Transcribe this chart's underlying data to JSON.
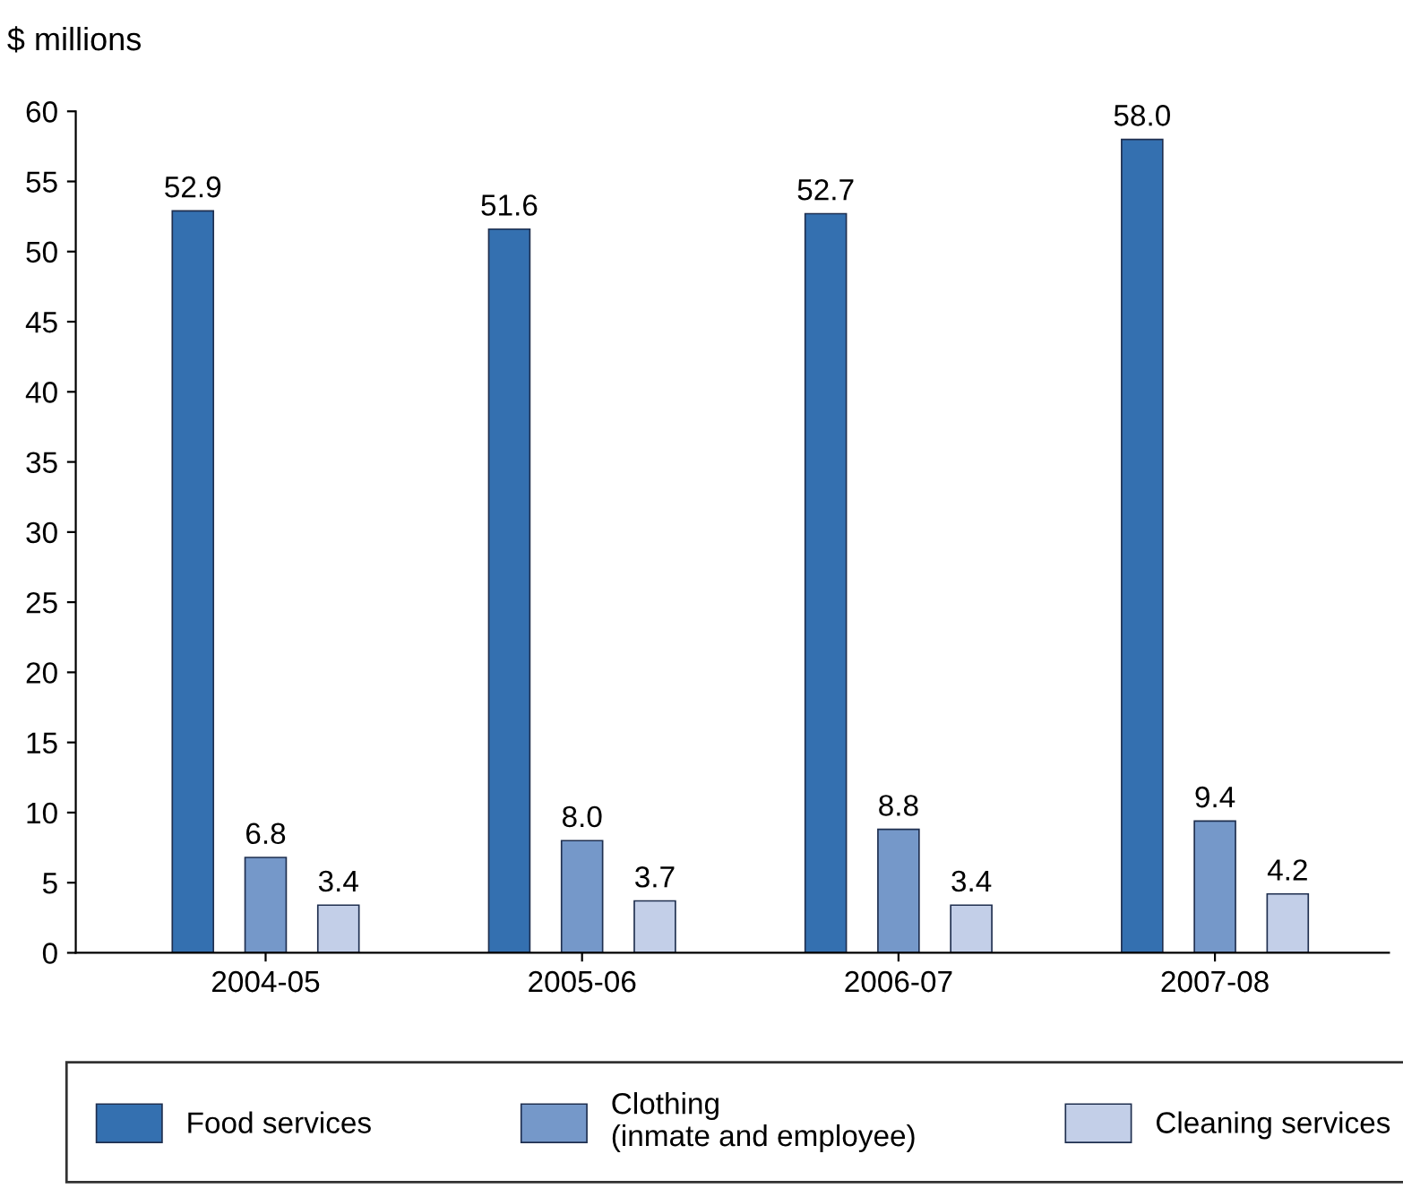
{
  "chart_data": {
    "type": "bar",
    "ylabel": "$ millions",
    "categories": [
      "2004-05",
      "2005-06",
      "2006-07",
      "2007-08"
    ],
    "series": [
      {
        "name": "Food services",
        "color": "#3470b0",
        "values": [
          52.9,
          51.6,
          52.7,
          58.0
        ],
        "value_labels": [
          "52.9",
          "51.6",
          "52.7",
          "58.0"
        ]
      },
      {
        "name": "Clothing\n(inmate and employee)",
        "color": "#7598c9",
        "values": [
          6.8,
          8.0,
          8.8,
          9.4
        ],
        "value_labels": [
          "6.8",
          "8.0",
          "8.8",
          "9.4"
        ]
      },
      {
        "name": "Cleaning services",
        "color": "#c3cfe8",
        "values": [
          3.4,
          3.7,
          3.4,
          4.2
        ],
        "value_labels": [
          "3.4",
          "3.7",
          "3.4",
          "4.2"
        ]
      }
    ],
    "ylim": [
      0,
      60
    ],
    "yticks": [
      0,
      5,
      10,
      15,
      20,
      25,
      30,
      35,
      40,
      45,
      50,
      55,
      60
    ],
    "grid": false,
    "legend": "bottom"
  }
}
